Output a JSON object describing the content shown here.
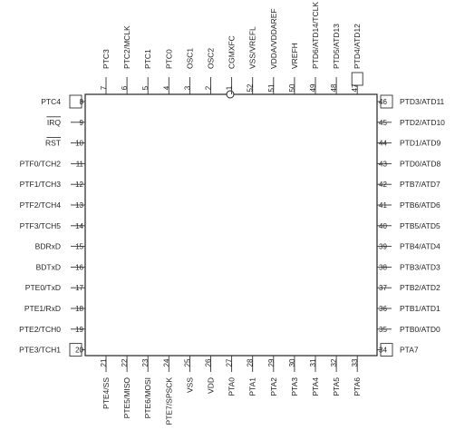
{
  "top_pins": [
    {
      "num": "7",
      "label": "PTC3"
    },
    {
      "num": "6",
      "label": "PTC2/MCLK"
    },
    {
      "num": "5",
      "label": "PTC1"
    },
    {
      "num": "4",
      "label": "PTC0"
    },
    {
      "num": "3",
      "label": "OSC1"
    },
    {
      "num": "2",
      "label": "OSC2"
    },
    {
      "num": "1",
      "label": "CGMXFC"
    },
    {
      "num": "52",
      "label": "VSS/VREFL"
    },
    {
      "num": "51",
      "label": "VDDA/VDDAREF"
    },
    {
      "num": "50",
      "label": "VREFH"
    },
    {
      "num": "49",
      "label": "PTD6/ATD14/TCLK"
    },
    {
      "num": "48",
      "label": "PTD5/ATD13"
    },
    {
      "num": "47",
      "label": "PTD4/ATD12"
    }
  ],
  "left_pins": [
    {
      "num": "8",
      "label": "PTC4"
    },
    {
      "num": "9",
      "label": "IRQ"
    },
    {
      "num": "10",
      "label": "RST"
    },
    {
      "num": "11",
      "label": "PTF0/TCH2"
    },
    {
      "num": "12",
      "label": "PTF1/TCH3"
    },
    {
      "num": "13",
      "label": "PTF2/TCH4"
    },
    {
      "num": "14",
      "label": "PTF3/TCH5"
    },
    {
      "num": "15",
      "label": "BDRxD"
    },
    {
      "num": "16",
      "label": "BDTxD"
    },
    {
      "num": "17",
      "label": "PTE0/TxD"
    },
    {
      "num": "18",
      "label": "PTE1/RxD"
    },
    {
      "num": "19",
      "label": "PTE2/TCH0"
    },
    {
      "num": "20",
      "label": "PTE3/TCH1"
    }
  ],
  "right_pins": [
    {
      "num": "46",
      "label": "PTD3/ATD11"
    },
    {
      "num": "45",
      "label": "PTD2/ATD10"
    },
    {
      "num": "44",
      "label": "PTD1/ATD9"
    },
    {
      "num": "43",
      "label": "PTD0/ATD8"
    },
    {
      "num": "42",
      "label": "PTB7/ATD7"
    },
    {
      "num": "41",
      "label": "PTB6/ATD6"
    },
    {
      "num": "40",
      "label": "PTB5/ATD5"
    },
    {
      "num": "39",
      "label": "PTB4/ATD4"
    },
    {
      "num": "38",
      "label": "PTB3/ATD3"
    },
    {
      "num": "37",
      "label": "PTB2/ATD2"
    },
    {
      "num": "36",
      "label": "PTB1/ATD1"
    },
    {
      "num": "35",
      "label": "PTB0/ATD0"
    },
    {
      "num": "34",
      "label": "PTA7"
    }
  ],
  "bottom_pins": [
    {
      "num": "21",
      "label": "PTE4/SS"
    },
    {
      "num": "22",
      "label": "PTE5/MISO"
    },
    {
      "num": "23",
      "label": "PTE6/MOSI"
    },
    {
      "num": "24",
      "label": "PTE7/SPSCK"
    },
    {
      "num": "25",
      "label": "VSS"
    },
    {
      "num": "26",
      "label": "VDD"
    },
    {
      "num": "27",
      "label": "PTA0"
    },
    {
      "num": "28",
      "label": "PTA1"
    },
    {
      "num": "29",
      "label": "PTA2"
    },
    {
      "num": "30",
      "label": "PTA3"
    },
    {
      "num": "31",
      "label": "PTA4"
    },
    {
      "num": "32",
      "label": "PTA5"
    },
    {
      "num": "33",
      "label": "PTA6"
    }
  ],
  "overbar_labels": [
    "IRQ",
    "RST"
  ],
  "corner_boxed_pins": [
    "8",
    "20",
    "34",
    "46",
    "47"
  ],
  "pin1_marker": "circle"
}
